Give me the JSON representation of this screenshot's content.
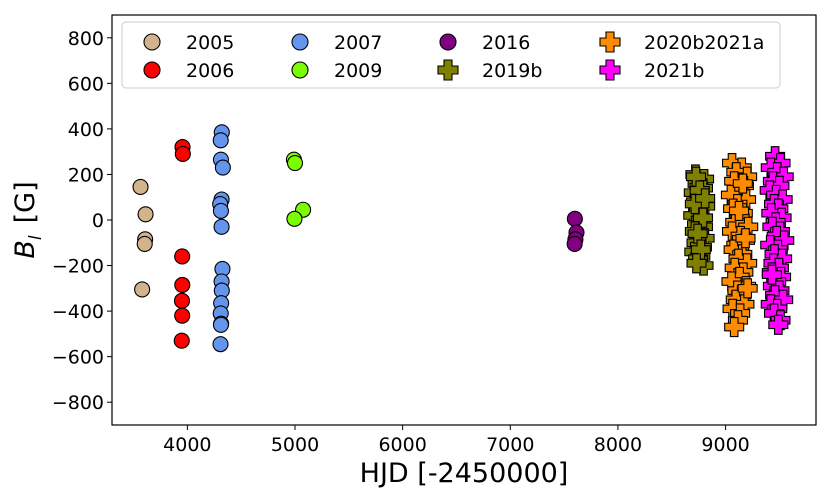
{
  "chart_data": {
    "type": "scatter",
    "xlabel": "HJD  [-2450000]",
    "ylabel_main": "B",
    "ylabel_sub": "l",
    "ylabel_unit": "[G]",
    "xlim": [
      3300,
      9840
    ],
    "ylim": [
      -900,
      900
    ],
    "xticks": [
      4000,
      5000,
      6000,
      7000,
      8000,
      9000
    ],
    "yticks": [
      -800,
      -600,
      -400,
      -200,
      0,
      200,
      400,
      600,
      800
    ],
    "ytick_labels": [
      "−800",
      "−600",
      "−400",
      "−200",
      "0",
      "200",
      "400",
      "600",
      "800"
    ],
    "grid": false,
    "legend_position": "top",
    "series": [
      {
        "name": "2005",
        "color": "#d2b48c",
        "marker": "circle",
        "x": [
          3565,
          3612,
          3608,
          3604,
          3580
        ],
        "y": [
          145,
          25,
          -85,
          -105,
          -305
        ]
      },
      {
        "name": "2006",
        "color": "#ff0000",
        "marker": "circle",
        "x": [
          3955,
          3958,
          3952,
          3953,
          3950,
          3952,
          3948
        ],
        "y": [
          320,
          290,
          -160,
          -285,
          -355,
          -420,
          -530
        ]
      },
      {
        "name": "2007",
        "color": "#6495ed",
        "marker": "circle",
        "x": [
          4320,
          4310,
          4312,
          4330,
          4318,
          4305,
          4312,
          4318,
          4326,
          4318,
          4320,
          4314,
          4310,
          4314,
          4312,
          4308
        ],
        "y": [
          385,
          350,
          265,
          230,
          90,
          70,
          40,
          -30,
          -215,
          -270,
          -310,
          -365,
          -410,
          -455,
          -460,
          -545
        ]
      },
      {
        "name": "2009",
        "color": "#7cfc00",
        "marker": "circle",
        "x": [
          4990,
          5000,
          5075,
          4995
        ],
        "y": [
          265,
          250,
          45,
          5
        ]
      },
      {
        "name": "2016",
        "color": "#800080",
        "marker": "circle",
        "x": [
          7600,
          7615,
          7605,
          7598
        ],
        "y": [
          5,
          -55,
          -85,
          -105
        ]
      },
      {
        "name": "2019b",
        "color": "#808000",
        "marker": "plus",
        "x": [
          8720,
          8800,
          8740,
          8790,
          8705,
          8760,
          8725,
          8810,
          8745,
          8700,
          8770,
          8735,
          8790,
          8715,
          8755,
          8805,
          8730,
          8780,
          8710,
          8765,
          8745,
          8795,
          8725,
          8760,
          8715,
          8790,
          8740,
          8770,
          8730,
          8810
        ],
        "y": [
          200,
          180,
          160,
          140,
          120,
          100,
          80,
          60,
          40,
          20,
          0,
          -20,
          -30,
          -50,
          -70,
          -80,
          -100,
          -120,
          -140,
          -160,
          -170,
          -200,
          190,
          130,
          70,
          10,
          -60,
          -130,
          -190,
          95
        ]
      },
      {
        "name": "2020b2021a",
        "color": "#ff8c00",
        "marker": "plus",
        "x": [
          9060,
          9150,
          9100,
          9200,
          9080,
          9170,
          9120,
          9050,
          9190,
          9110,
          9070,
          9160,
          9130,
          9090,
          9210,
          9060,
          9140,
          9180,
          9100,
          9075,
          9155,
          9120,
          9200,
          9085,
          9165,
          9130,
          9055,
          9190,
          9110,
          9145,
          9095,
          9175,
          9065,
          9135,
          9205,
          9115,
          9080,
          9160,
          9125,
          9185
        ],
        "y": [
          250,
          230,
          210,
          190,
          170,
          150,
          130,
          110,
          90,
          70,
          50,
          30,
          10,
          -10,
          -30,
          -50,
          -70,
          -90,
          -110,
          -130,
          -150,
          -170,
          -190,
          -210,
          -230,
          -250,
          -270,
          -290,
          -310,
          -330,
          -350,
          -370,
          -390,
          -410,
          -300,
          -440,
          -470,
          160,
          40,
          -80
        ]
      },
      {
        "name": "2021b",
        "color": "#ff00ff",
        "marker": "plus",
        "x": [
          9460,
          9510,
          9420,
          9480,
          9540,
          9440,
          9500,
          9410,
          9470,
          9530,
          9450,
          9490,
          9425,
          9520,
          9465,
          9435,
          9505,
          9475,
          9545,
          9415,
          9485,
          9455,
          9525,
          9445,
          9495,
          9430,
          9515,
          9470,
          9440,
          9500,
          9460,
          9535,
          9420,
          9480,
          9450,
          9510,
          9490,
          9430
        ],
        "y": [
          280,
          250,
          230,
          210,
          190,
          170,
          150,
          130,
          110,
          90,
          70,
          50,
          30,
          10,
          -10,
          -30,
          -50,
          -70,
          -90,
          -110,
          -130,
          -150,
          -170,
          -190,
          -210,
          -230,
          -250,
          -270,
          -290,
          -310,
          -330,
          -350,
          -370,
          -390,
          -410,
          -440,
          -460,
          -240
        ]
      }
    ]
  }
}
